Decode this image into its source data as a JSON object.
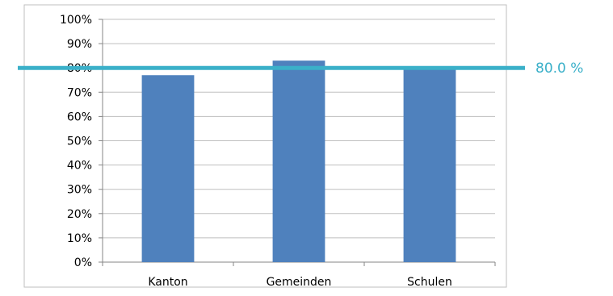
{
  "chart_data": {
    "type": "bar",
    "categories": [
      "Kanton",
      "Gemeinden",
      "Schulen"
    ],
    "values": [
      77,
      83,
      80
    ],
    "ylim": [
      0,
      100
    ],
    "y_ticks": [
      "0%",
      "10%",
      "20%",
      "30%",
      "40%",
      "50%",
      "60%",
      "70%",
      "80%",
      "90%",
      "100%"
    ],
    "grid": true,
    "bar_color": "#4f81bd",
    "reference_line": {
      "value": 80,
      "label": "80.0 %",
      "color": "#3bb0c9"
    }
  }
}
